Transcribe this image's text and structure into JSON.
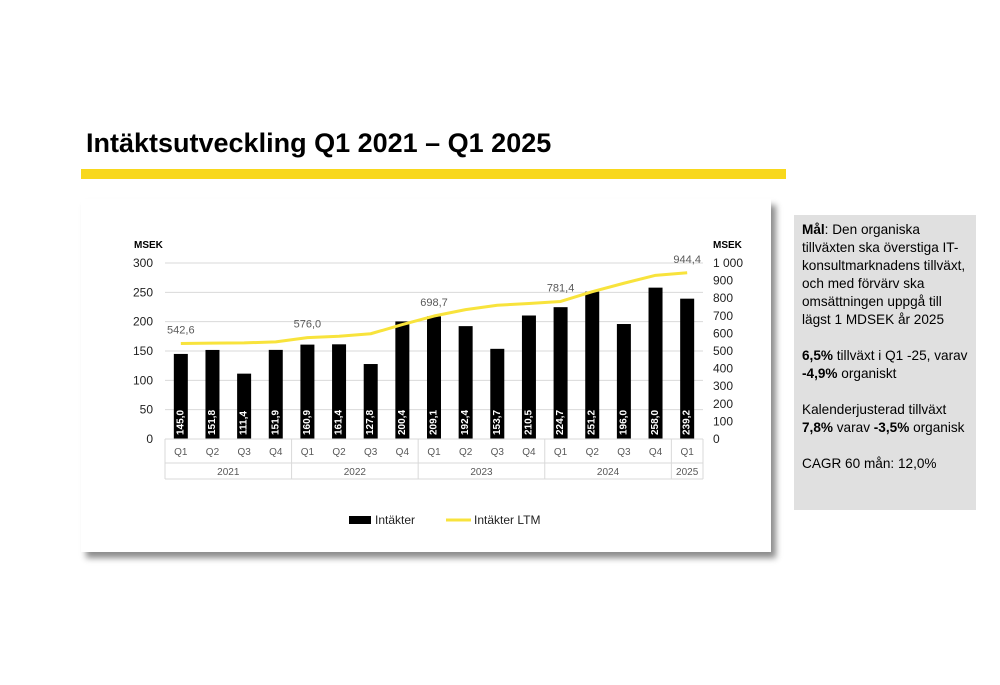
{
  "page": {
    "title": "Intäktsutveckling Q1 2021 – Q1 2025",
    "accent_color": "#f8d81c"
  },
  "info_box": {
    "goal_label": "Mål",
    "goal_text": ": Den organiska tillväxten ska överstiga IT-konsultmarknadens tillväxt, och med förvärv ska  omsättningen uppgå till lägst 1 MDSEK år 2025",
    "growth_value": "6,5%",
    "growth_text_1": " tillväxt i Q1 -25, varav ",
    "growth_organic_value": "-4,9%",
    "growth_text_2": " organiskt",
    "calendar_text_1": "Kalenderjusterad tillväxt ",
    "calendar_value": "7,8%",
    "calendar_text_2": " varav ",
    "calendar_organic_value": "-3,5%",
    "calendar_text_3": " organisk",
    "cagr_text": "CAGR 60 mån: 12,0%"
  },
  "chart_data": {
    "type": "bar",
    "left_axis_unit": "MSEK",
    "right_axis_unit": "MSEK",
    "categories": [
      "Q1",
      "Q2",
      "Q3",
      "Q4",
      "Q1",
      "Q2",
      "Q3",
      "Q4",
      "Q1",
      "Q2",
      "Q3",
      "Q4",
      "Q1",
      "Q2",
      "Q3",
      "Q4",
      "Q1"
    ],
    "year_groups": [
      {
        "label": "2021",
        "count": 4
      },
      {
        "label": "2022",
        "count": 4
      },
      {
        "label": "2023",
        "count": 4
      },
      {
        "label": "2024",
        "count": 4
      },
      {
        "label": "2025",
        "count": 1
      }
    ],
    "ylim": [
      0,
      300
    ],
    "yticks": [
      "0",
      "50",
      "100",
      "150",
      "200",
      "250",
      "300"
    ],
    "y2lim": [
      0,
      1000
    ],
    "y2ticks": [
      "0",
      "100",
      "200",
      "300",
      "400",
      "500",
      "600",
      "700",
      "800",
      "900",
      "1 000"
    ],
    "series": [
      {
        "name": "Intäkter",
        "type": "bar",
        "axis": "left",
        "color": "#000000",
        "values": [
          145.0,
          151.8,
          111.4,
          151.9,
          160.9,
          161.4,
          127.8,
          200.4,
          209.1,
          192.4,
          153.7,
          210.5,
          224.7,
          251.2,
          196.0,
          258.0,
          239.2
        ],
        "labels": [
          "145,0",
          "151,8",
          "111,4",
          "151,9",
          "160,9",
          "161,4",
          "127,8",
          "200,4",
          "209,1",
          "192,4",
          "153,7",
          "210,5",
          "224,7",
          "251,2",
          "196,0",
          "258,0",
          "239,2"
        ]
      },
      {
        "name": "Intäkter LTM",
        "type": "line",
        "axis": "right",
        "color": "#f8e33c",
        "values": [
          542.6,
          545,
          546,
          552,
          576.0,
          584,
          598,
          650,
          698.7,
          735,
          760,
          770,
          781.4,
          837,
          885,
          930,
          944.4
        ],
        "annotations": [
          {
            "index": 0,
            "label": "542,6"
          },
          {
            "index": 4,
            "label": "576,0"
          },
          {
            "index": 8,
            "label": "698,7"
          },
          {
            "index": 12,
            "label": "781,4"
          },
          {
            "index": 16,
            "label": "944,4"
          }
        ]
      }
    ],
    "grid": true,
    "legend_position": "bottom"
  }
}
